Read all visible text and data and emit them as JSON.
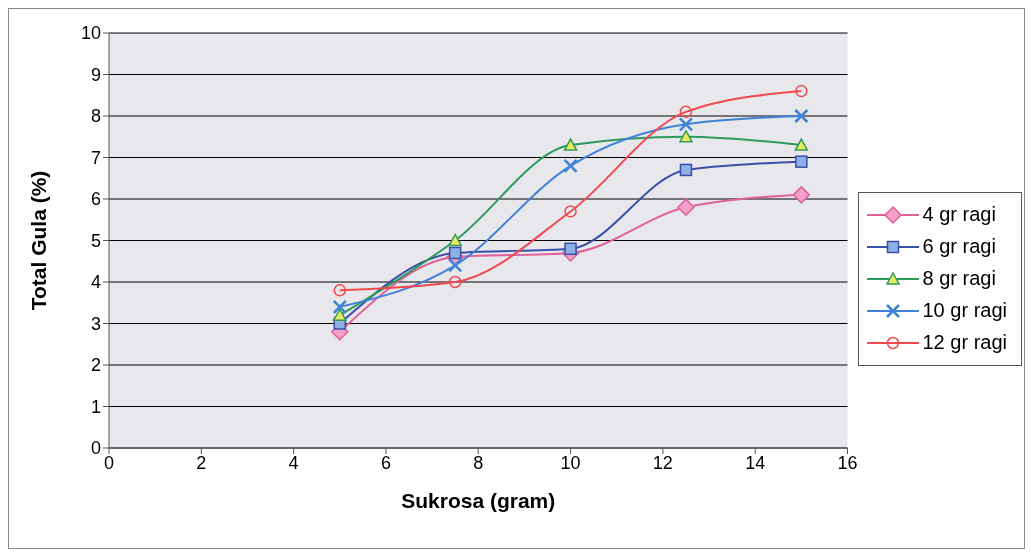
{
  "chart_data": {
    "type": "line",
    "xlabel": "Sukrosa (gram)",
    "ylabel": "Total Gula (%)",
    "x": [
      5,
      7.5,
      10,
      12.5,
      15
    ],
    "xlim": [
      0,
      16
    ],
    "xticks": [
      0,
      2,
      4,
      6,
      8,
      10,
      12,
      14,
      16
    ],
    "ylim": [
      0,
      10
    ],
    "yticks": [
      0,
      1,
      2,
      3,
      4,
      5,
      6,
      7,
      8,
      9,
      10
    ],
    "grid": "y",
    "legend": "right",
    "series": [
      {
        "name": "4 gr ragi",
        "color": "#e0609a",
        "marker": "diamond",
        "values": [
          2.8,
          4.6,
          4.7,
          5.8,
          6.1
        ]
      },
      {
        "name": "6 gr ragi",
        "color": "#3a4fa8",
        "marker": "square",
        "values": [
          3.0,
          4.7,
          4.8,
          6.7,
          6.9
        ]
      },
      {
        "name": "8 gr ragi",
        "color": "#2e9a5a",
        "marker": "triangle",
        "values": [
          3.2,
          5.0,
          7.3,
          7.5,
          7.3
        ]
      },
      {
        "name": "10 gr ragi",
        "color": "#3f82d6",
        "marker": "cross",
        "values": [
          3.4,
          4.4,
          6.8,
          7.8,
          8.0
        ]
      },
      {
        "name": "12 gr ragi",
        "color": "#f04a50",
        "marker": "circle",
        "values": [
          3.8,
          4.0,
          5.7,
          8.1,
          8.6
        ]
      }
    ]
  }
}
